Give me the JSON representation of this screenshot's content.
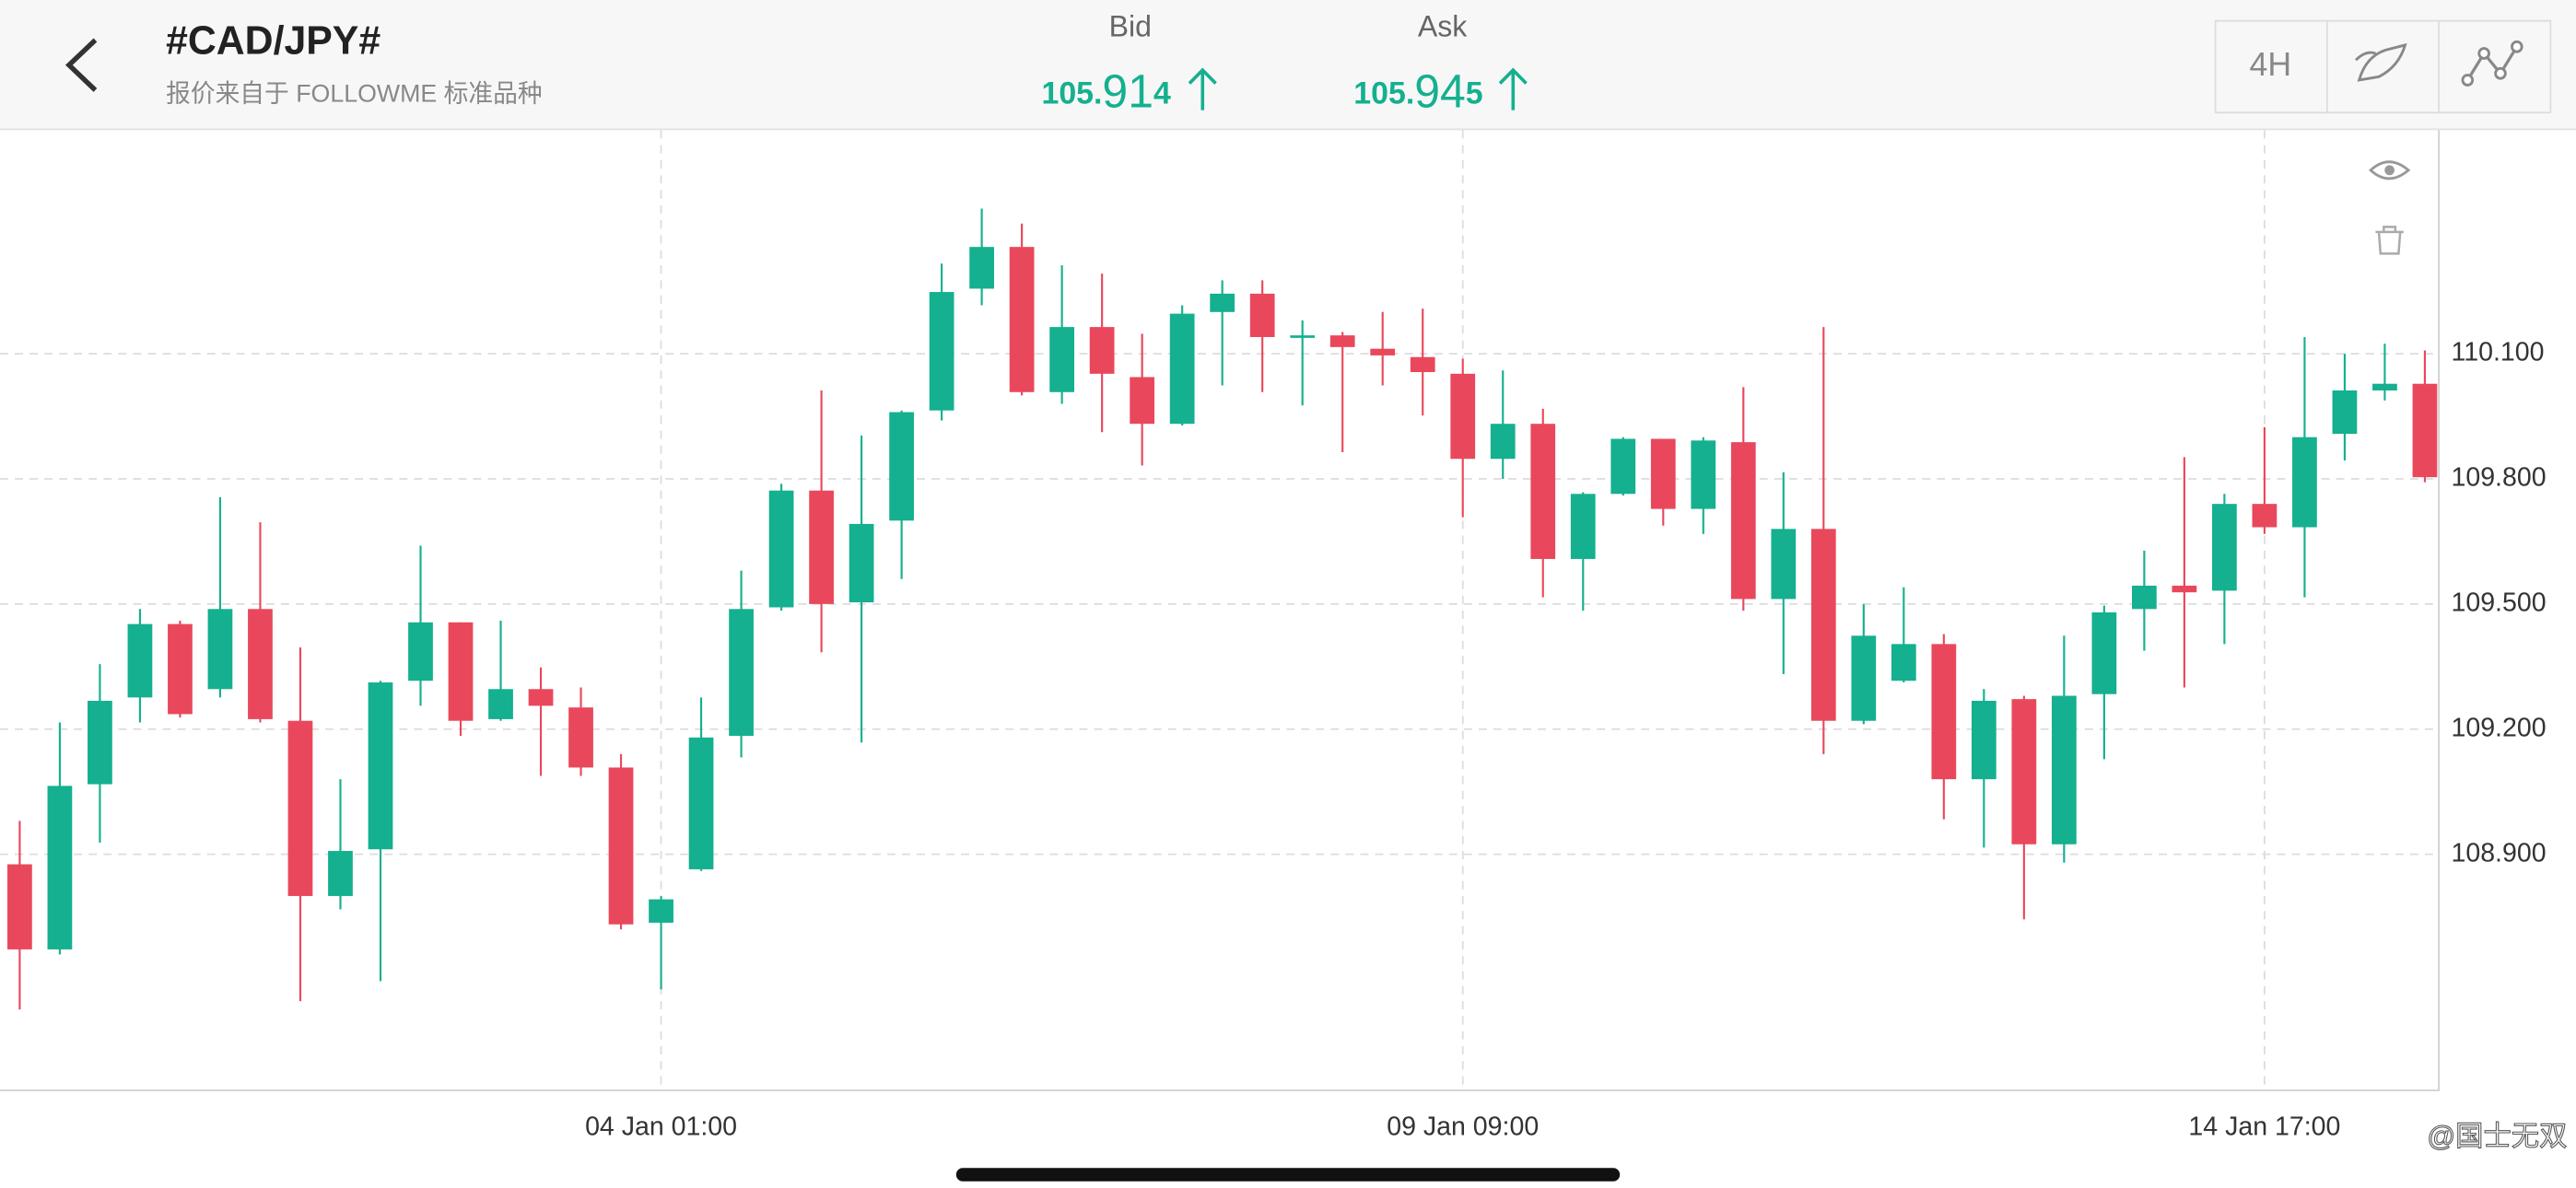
{
  "header": {
    "title": "#CAD/JPY#",
    "subtitle": "报价来自于 FOLLOWME 标准品种",
    "bid": {
      "label": "Bid",
      "price_prefix": "105.",
      "price_big": "91",
      "price_suffix": "4"
    },
    "ask": {
      "label": "Ask",
      "price_prefix": "105.",
      "price_big": "94",
      "price_suffix": "5"
    },
    "timeframe": "4H"
  },
  "watermark": "@国士无双",
  "chart_data": {
    "type": "candlestick",
    "up_color": "#14b08f",
    "down_color": "#e9485c",
    "grid": true,
    "categories": [
      null,
      null,
      null,
      null,
      null,
      null,
      null,
      null,
      null,
      null,
      null,
      null,
      null,
      null,
      null,
      null,
      "04 Jan 01:00",
      null,
      null,
      null,
      null,
      null,
      null,
      null,
      null,
      null,
      null,
      null,
      null,
      null,
      null,
      null,
      null,
      null,
      null,
      null,
      "09 Jan 09:00",
      null,
      null,
      null,
      null,
      null,
      null,
      null,
      null,
      null,
      null,
      null,
      null,
      null,
      null,
      null,
      null,
      null,
      null,
      null,
      "14 Jan 17:00",
      null,
      null,
      null,
      null
    ],
    "open": [
      108.876,
      108.672,
      109.068,
      109.276,
      109.452,
      109.296,
      109.488,
      109.22,
      108.8,
      108.912,
      109.316,
      109.456,
      109.224,
      109.296,
      109.252,
      109.108,
      108.736,
      108.864,
      109.184,
      109.492,
      109.772,
      109.504,
      109.7,
      109.964,
      110.256,
      110.356,
      110.008,
      110.164,
      110.044,
      109.932,
      110.2,
      110.244,
      110.14,
      110.144,
      110.112,
      110.092,
      110.052,
      109.848,
      109.932,
      109.608,
      109.764,
      109.896,
      109.728,
      109.888,
      109.512,
      109.68,
      109.22,
      109.316,
      109.404,
      109.08,
      109.272,
      108.924,
      109.284,
      109.488,
      109.544,
      109.532,
      109.74,
      109.684,
      109.908,
      110.012,
      110.028
    ],
    "high": [
      108.98,
      109.216,
      109.356,
      109.488,
      109.46,
      109.756,
      109.696,
      109.396,
      109.08,
      109.316,
      109.64,
      109.456,
      109.46,
      109.348,
      109.3,
      109.14,
      108.8,
      109.276,
      109.58,
      109.788,
      110.012,
      109.904,
      109.964,
      110.316,
      110.448,
      110.412,
      110.312,
      110.292,
      110.148,
      110.216,
      110.276,
      110.276,
      110.18,
      110.152,
      110.2,
      110.208,
      110.088,
      110.06,
      109.968,
      109.768,
      109.9,
      109.896,
      109.9,
      110.02,
      109.816,
      110.164,
      109.5,
      109.54,
      109.428,
      109.296,
      109.28,
      109.424,
      109.496,
      109.628,
      109.852,
      109.764,
      109.924,
      110.14,
      110.1,
      110.124,
      110.108
    ],
    "low": [
      108.528,
      108.66,
      108.928,
      109.216,
      109.228,
      109.276,
      109.216,
      108.548,
      108.768,
      108.596,
      109.256,
      109.184,
      109.22,
      109.088,
      109.088,
      108.72,
      108.576,
      108.86,
      109.132,
      109.484,
      109.384,
      109.168,
      109.56,
      109.94,
      110.216,
      110.0,
      109.98,
      109.912,
      109.832,
      109.928,
      110.024,
      110.008,
      109.976,
      109.864,
      110.024,
      109.952,
      109.708,
      109.8,
      109.516,
      109.484,
      109.76,
      109.688,
      109.668,
      109.484,
      109.332,
      109.14,
      109.212,
      109.312,
      108.984,
      108.916,
      108.744,
      108.88,
      109.128,
      109.388,
      109.3,
      109.404,
      109.668,
      109.516,
      109.844,
      109.988,
      109.792
    ],
    "close": [
      108.672,
      109.064,
      109.268,
      109.452,
      109.236,
      109.488,
      109.224,
      108.8,
      108.908,
      109.312,
      109.456,
      109.22,
      109.296,
      109.256,
      109.108,
      108.732,
      108.792,
      109.18,
      109.488,
      109.772,
      109.5,
      109.692,
      109.96,
      110.248,
      110.356,
      110.008,
      110.164,
      110.052,
      109.932,
      110.196,
      110.244,
      110.14,
      110.144,
      110.116,
      110.096,
      110.056,
      109.848,
      109.932,
      109.608,
      109.764,
      109.896,
      109.728,
      109.892,
      109.512,
      109.68,
      109.22,
      109.424,
      109.404,
      109.08,
      109.268,
      108.924,
      109.28,
      109.48,
      109.544,
      109.528,
      109.74,
      109.684,
      109.9,
      110.012,
      110.028,
      109.804
    ],
    "ylim": [
      108.336,
      110.636
    ],
    "yticks": [
      {
        "value": 108.9,
        "label": "108.900"
      },
      {
        "value": 109.2,
        "label": "109.200"
      },
      {
        "value": 109.5,
        "label": "109.500"
      },
      {
        "value": 109.8,
        "label": "109.800"
      },
      {
        "value": 110.1,
        "label": "110.100"
      }
    ]
  }
}
